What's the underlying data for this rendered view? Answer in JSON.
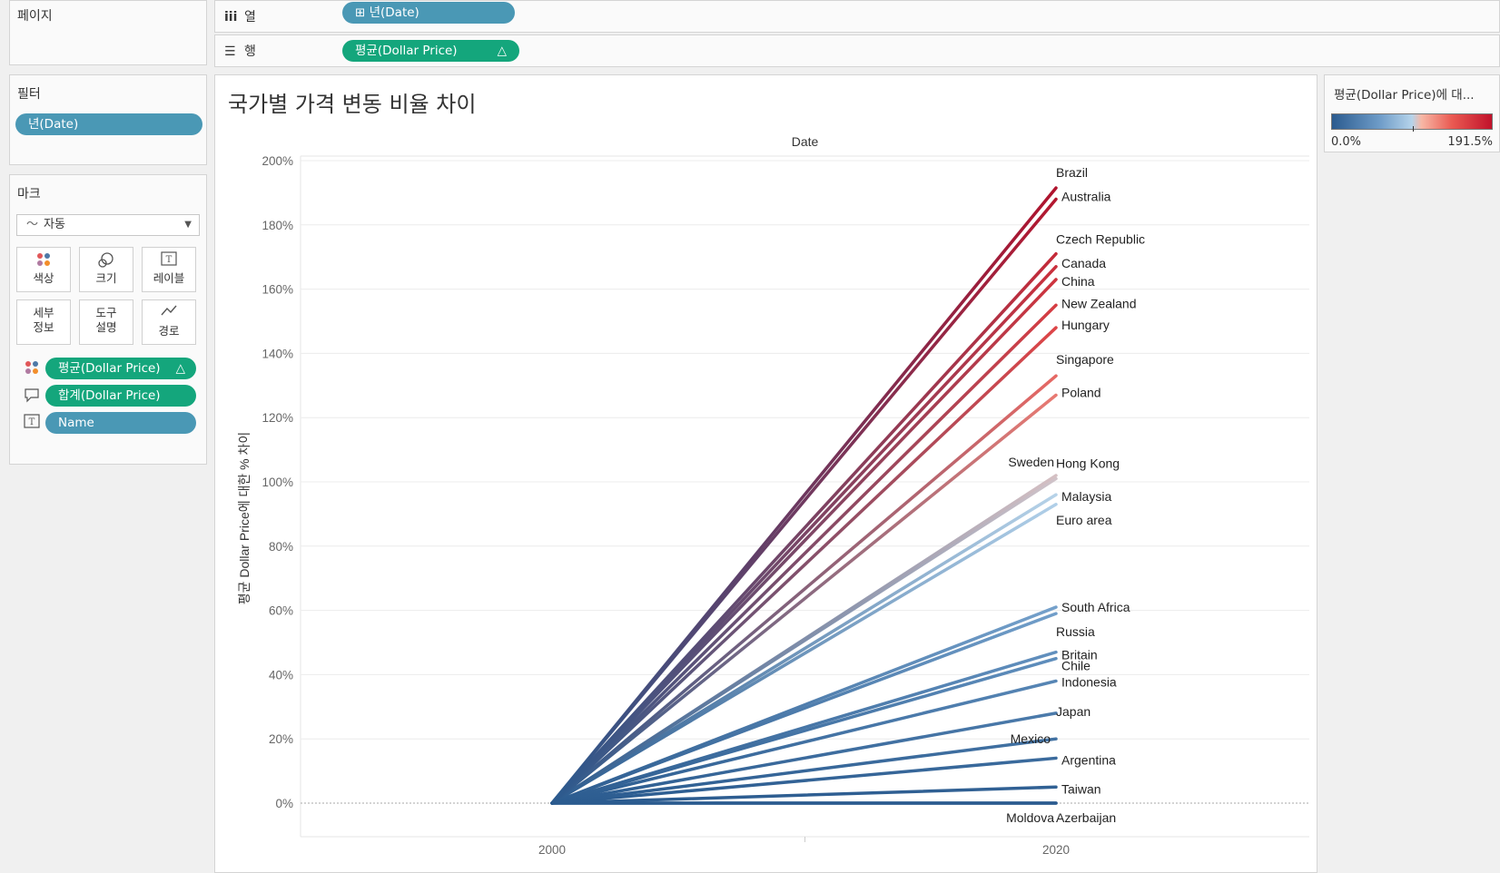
{
  "pages_panel": {
    "title": "페이지"
  },
  "columns_shelf": {
    "icon": "iii",
    "label": "열",
    "pill": "⊞ 년(Date)"
  },
  "rows_shelf": {
    "icon": "☰",
    "label": "행",
    "pill": "평균(Dollar Price)",
    "pill_delta": "△"
  },
  "filters_panel": {
    "title": "필터",
    "pill": "년(Date)"
  },
  "marks_panel": {
    "title": "마크",
    "mark_type": "자동",
    "buttons": [
      {
        "line1": "색상",
        "line2": ""
      },
      {
        "line1": "크기",
        "line2": ""
      },
      {
        "line1": "레이블",
        "line2": ""
      },
      {
        "line1": "세부",
        "line2": "정보"
      },
      {
        "line1": "도구",
        "line2": "설명"
      },
      {
        "line1": "경로",
        "line2": ""
      }
    ],
    "fields": [
      {
        "icon": "color-dots-icon",
        "label": "평균(Dollar Price)",
        "delta": "△"
      },
      {
        "icon": "tooltip-icon",
        "label": "합계(Dollar Price)",
        "delta": ""
      },
      {
        "icon": "label-icon",
        "label": "Name",
        "delta": ""
      }
    ]
  },
  "legend": {
    "title": "평균(Dollar Price)에 대...",
    "min_label": "0.0%",
    "max_label": "191.5%",
    "colors": [
      "#2b5b8f",
      "#b5d3ea",
      "#c1122b"
    ]
  },
  "chart_data": {
    "type": "line",
    "title": "국가별 가격 변동 비율 차이",
    "header_label": "Date",
    "xlabel": "",
    "ylabel": "평균 Dollar Price에 대한 % 차이",
    "x_categories": [
      "2000",
      "2020"
    ],
    "ylim": [
      -10,
      202
    ],
    "y_ticks": [
      0,
      20,
      40,
      60,
      80,
      100,
      120,
      140,
      160,
      180,
      200
    ],
    "y_tick_labels": [
      "0%",
      "20%",
      "40%",
      "60%",
      "80%",
      "100%",
      "120%",
      "140%",
      "160%",
      "180%",
      "200%"
    ],
    "zero_line": true,
    "series": [
      {
        "name": "Brazil",
        "values": [
          0,
          191.5
        ]
      },
      {
        "name": "Australia",
        "values": [
          0,
          188
        ]
      },
      {
        "name": "Czech Republic",
        "values": [
          0,
          171
        ]
      },
      {
        "name": "Canada",
        "values": [
          0,
          167
        ]
      },
      {
        "name": "China",
        "values": [
          0,
          163
        ]
      },
      {
        "name": "New Zealand",
        "values": [
          0,
          155
        ]
      },
      {
        "name": "Hungary",
        "values": [
          0,
          148
        ]
      },
      {
        "name": "Singapore",
        "values": [
          0,
          133
        ]
      },
      {
        "name": "Poland",
        "values": [
          0,
          127
        ]
      },
      {
        "name": "Sweden",
        "values": [
          0,
          102
        ]
      },
      {
        "name": "Hong Kong",
        "values": [
          0,
          101
        ]
      },
      {
        "name": "Malaysia",
        "values": [
          0,
          96
        ]
      },
      {
        "name": "Euro area",
        "values": [
          0,
          93
        ]
      },
      {
        "name": "South Africa",
        "values": [
          0,
          61
        ]
      },
      {
        "name": "Russia",
        "values": [
          0,
          59
        ]
      },
      {
        "name": "Britain",
        "values": [
          0,
          47
        ]
      },
      {
        "name": "Chile",
        "values": [
          0,
          45
        ]
      },
      {
        "name": "Indonesia",
        "values": [
          0,
          38
        ]
      },
      {
        "name": "Japan",
        "values": [
          0,
          28
        ]
      },
      {
        "name": "Mexico",
        "values": [
          0,
          20
        ]
      },
      {
        "name": "Argentina",
        "values": [
          0,
          14
        ]
      },
      {
        "name": "Taiwan",
        "values": [
          0,
          5
        ]
      },
      {
        "name": "Moldova",
        "values": [
          0,
          0
        ]
      },
      {
        "name": "Azerbaijan",
        "values": [
          0,
          0
        ]
      }
    ]
  }
}
